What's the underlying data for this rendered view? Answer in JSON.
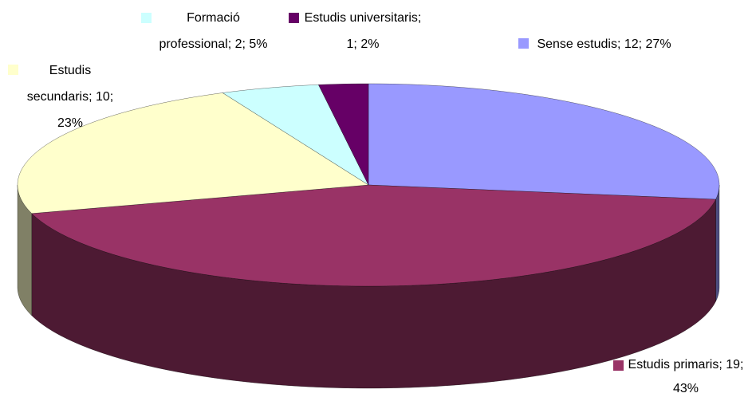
{
  "chart_data": {
    "type": "pie3d",
    "values": [
      12,
      19,
      10,
      2,
      1
    ],
    "value_labels": [
      "Sense estudis; 12; 27%",
      "Estudis primaris; 19; 43%",
      "Estudis secundaris; 10; 23%",
      "Formació professional; 2; 5%",
      "Estudis universitaris; 1; 2%"
    ],
    "colors": [
      "#9999ff",
      "#993366",
      "#ffffcc",
      "#ccffff",
      "#660066"
    ]
  }
}
